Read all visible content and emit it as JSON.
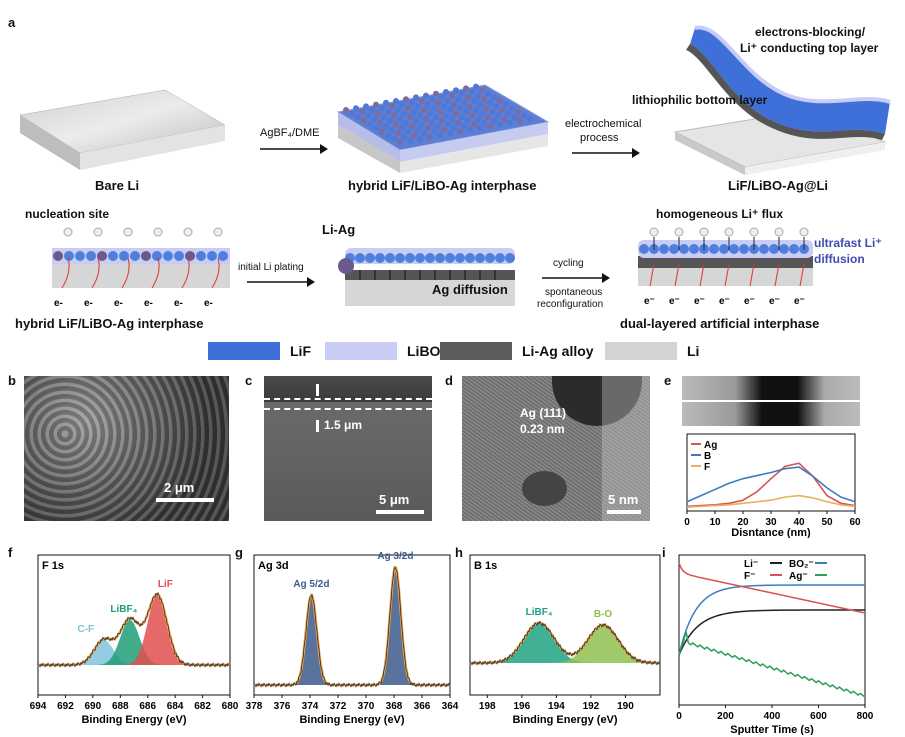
{
  "panel_letters": {
    "a": "a",
    "b": "b",
    "c": "c",
    "d": "d",
    "e": "e",
    "f": "f",
    "g": "g",
    "h": "h",
    "i": "i"
  },
  "panel_a": {
    "stage1_label": "Bare Li",
    "arrow1_label": "AgBF₄/DME",
    "stage2_label": "hybrid LiF/LiBO-Ag interphase",
    "arrow2_label_line1": "electrochemical",
    "arrow2_label_line2": "process",
    "stage3_label": "LiF/LiBO-Ag@Li",
    "top_layer_line1": "electrons-blocking/",
    "top_layer_line2": "Li⁺ conducting top layer",
    "bottom_layer": "lithiophilic bottom layer",
    "row2": {
      "nucleation": "nucleation site",
      "left_caption": "hybrid LiF/LiBO-Ag interphase",
      "electron_label": "e-",
      "initial_plating": "initial Li plating",
      "li_ag": "Li-Ag",
      "ag_diffusion": "Ag diffusion",
      "cycling": "cycling",
      "spontaneous_line1": "spontaneous",
      "spontaneous_line2": "reconfiguration",
      "homogeneous": "homogeneous Li⁺ flux",
      "ultrafast_line1": "ultrafast Li⁺",
      "ultrafast_line2": "diffusion",
      "right_caption": "dual-layered artificial interphase",
      "electron_label_right": "e⁻"
    },
    "legend": [
      {
        "name": "LiF",
        "color": "#3f6fd8"
      },
      {
        "name": "LiBO",
        "color": "#c9cdf3"
      },
      {
        "name": "Li-Ag alloy",
        "color": "#5c5c5c"
      },
      {
        "name": "Li",
        "color": "#d3d3d3"
      }
    ]
  },
  "panel_b": {
    "scale": "2 μm"
  },
  "panel_c": {
    "thickness": "1.5 μm",
    "scale": "5 μm"
  },
  "panel_d": {
    "lattice_line1": "Ag (111)",
    "lattice_line2": "0.23 nm",
    "scale": "5 nm"
  },
  "chart_data": [
    {
      "panel": "e",
      "type": "line",
      "xlabel": "Disntance (nm)",
      "xlim": [
        0,
        60
      ],
      "xticks": [
        0,
        10,
        20,
        30,
        40,
        50,
        60
      ],
      "series": [
        {
          "name": "Ag",
          "color": "#d9534f",
          "x": [
            0,
            5,
            10,
            15,
            20,
            25,
            30,
            35,
            40,
            45,
            50,
            55,
            60
          ],
          "y": [
            0.06,
            0.07,
            0.08,
            0.1,
            0.14,
            0.25,
            0.42,
            0.58,
            0.62,
            0.45,
            0.2,
            0.1,
            0.07
          ]
        },
        {
          "name": "B",
          "color": "#3b7dc4",
          "x": [
            0,
            5,
            10,
            15,
            20,
            25,
            30,
            35,
            40,
            45,
            50,
            55,
            60
          ],
          "y": [
            0.12,
            0.2,
            0.28,
            0.36,
            0.42,
            0.46,
            0.5,
            0.55,
            0.57,
            0.45,
            0.3,
            0.18,
            0.12
          ]
        },
        {
          "name": "F",
          "color": "#e8b05a",
          "x": [
            0,
            5,
            10,
            15,
            20,
            25,
            30,
            35,
            40,
            45,
            50,
            55,
            60
          ],
          "y": [
            0.05,
            0.06,
            0.07,
            0.08,
            0.1,
            0.12,
            0.14,
            0.18,
            0.2,
            0.17,
            0.12,
            0.08,
            0.06
          ]
        }
      ]
    },
    {
      "panel": "f",
      "type": "line",
      "title": "F 1s",
      "xlabel": "Binding Energy (eV)",
      "xlim": [
        694,
        680
      ],
      "xticks": [
        694,
        692,
        690,
        688,
        686,
        684,
        682,
        680
      ],
      "peaks": [
        {
          "name": "C-F",
          "center": 689.2,
          "color": "#7fc4dd"
        },
        {
          "name": "LiBF₄",
          "center": 687.3,
          "color": "#1f9e74"
        },
        {
          "name": "LiF",
          "center": 685.3,
          "color": "#e04f4f"
        }
      ]
    },
    {
      "panel": "g",
      "type": "line",
      "title": "Ag 3d",
      "xlabel": "Binding Energy (eV)",
      "xlim": [
        378,
        364
      ],
      "xticks": [
        378,
        376,
        374,
        372,
        370,
        368,
        366,
        364
      ],
      "peaks": [
        {
          "name": "Ag 5/2d",
          "center": 373.9,
          "color": "#3d5a8c"
        },
        {
          "name": "Ag 3/2d",
          "center": 367.9,
          "color": "#3d5a8c"
        }
      ]
    },
    {
      "panel": "h",
      "type": "line",
      "title": "B 1s",
      "xlabel": "Binding Energy (eV)",
      "xlim": [
        199,
        188
      ],
      "xticks": [
        198,
        196,
        194,
        192,
        190
      ],
      "peaks": [
        {
          "name": "LiBF₄",
          "center": 195.0,
          "color": "#1fa383"
        },
        {
          "name": "B-O",
          "center": 191.3,
          "color": "#8fbf4f"
        }
      ]
    },
    {
      "panel": "i",
      "type": "line",
      "xlabel": "Sputter Time (s)",
      "xlim": [
        0,
        800
      ],
      "xticks": [
        0,
        200,
        400,
        600,
        800
      ],
      "series": [
        {
          "name": "Li⁻",
          "color": "#222222"
        },
        {
          "name": "BO₂⁻",
          "color": "#3b7dc4"
        },
        {
          "name": "F⁻",
          "color": "#d9534f"
        },
        {
          "name": "Ag⁻",
          "color": "#2e9e5c"
        }
      ]
    }
  ]
}
